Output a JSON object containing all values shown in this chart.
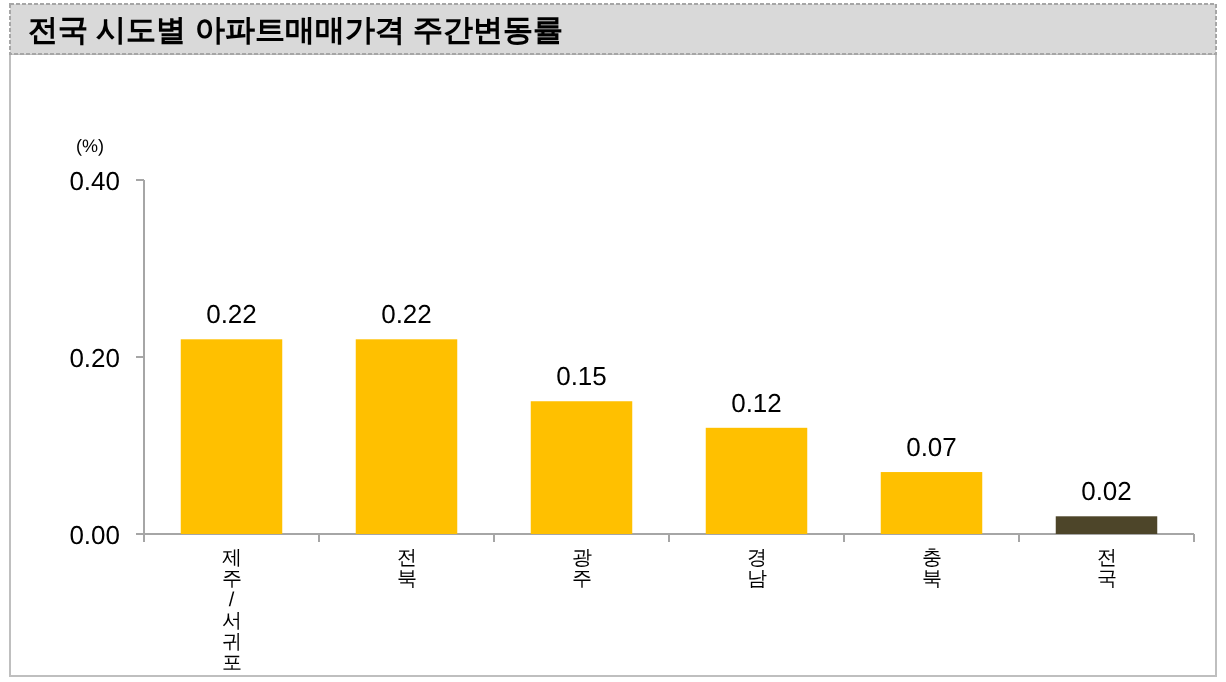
{
  "chart_data": {
    "type": "bar",
    "title": "전국 시도별 아파트매매가격 주간변동률",
    "ylabel": "(%)",
    "categories": [
      "제주/서귀포",
      "전북",
      "광주",
      "경남",
      "충북",
      "전국"
    ],
    "values": [
      0.22,
      0.22,
      0.15,
      0.12,
      0.07,
      0.02
    ],
    "colors": [
      "#ffc000",
      "#ffc000",
      "#ffc000",
      "#ffc000",
      "#ffc000",
      "#4d4529"
    ],
    "ylim": [
      0,
      0.4
    ],
    "yticks": [
      {
        "value": 0,
        "label": "0.00"
      },
      {
        "value": 0.2,
        "label": "0.20"
      },
      {
        "value": 0.4,
        "label": "0.40"
      }
    ],
    "data_labels": true,
    "grid": false
  }
}
